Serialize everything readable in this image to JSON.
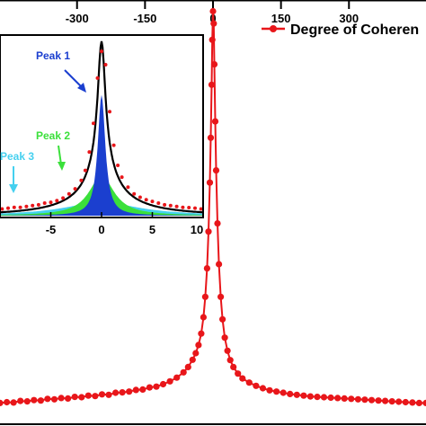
{
  "chart_data": [
    {
      "name": "main",
      "type": "scatter",
      "title": "",
      "xlabel": "",
      "ylabel": "",
      "xlim": [
        -470,
        470
      ],
      "ylim": [
        0,
        1.0
      ],
      "top_ticks": [
        -300,
        -150,
        0,
        150,
        300
      ],
      "top_tick_labels": [
        "-300",
        "-150",
        "0",
        "150",
        "300"
      ],
      "legend": {
        "label": "Degree of Coheren",
        "placement": "top-right"
      },
      "series": [
        {
          "name": "Degree of Coheren",
          "color": "#e8161a",
          "marker": "circle",
          "line": true,
          "points": [
            [
              -470,
              0.03
            ],
            [
              -455,
              0.032
            ],
            [
              -440,
              0.031
            ],
            [
              -425,
              0.035
            ],
            [
              -410,
              0.034
            ],
            [
              -395,
              0.037
            ],
            [
              -380,
              0.036
            ],
            [
              -365,
              0.04
            ],
            [
              -350,
              0.039
            ],
            [
              -335,
              0.042
            ],
            [
              -320,
              0.041
            ],
            [
              -305,
              0.045
            ],
            [
              -290,
              0.044
            ],
            [
              -275,
              0.048
            ],
            [
              -260,
              0.047
            ],
            [
              -245,
              0.051
            ],
            [
              -230,
              0.05
            ],
            [
              -215,
              0.055
            ],
            [
              -200,
              0.056
            ],
            [
              -185,
              0.058
            ],
            [
              -170,
              0.062
            ],
            [
              -155,
              0.063
            ],
            [
              -140,
              0.068
            ],
            [
              -125,
              0.07
            ],
            [
              -110,
              0.076
            ],
            [
              -95,
              0.083
            ],
            [
              -80,
              0.092
            ],
            [
              -65,
              0.105
            ],
            [
              -55,
              0.118
            ],
            [
              -45,
              0.136
            ],
            [
              -38,
              0.152
            ],
            [
              -32,
              0.172
            ],
            [
              -26,
              0.2
            ],
            [
              -21,
              0.24
            ],
            [
              -17,
              0.29
            ],
            [
              -13,
              0.36
            ],
            [
              -10,
              0.45
            ],
            [
              -7,
              0.57
            ],
            [
              -5,
              0.68
            ],
            [
              -3,
              0.81
            ],
            [
              -1.5,
              0.92
            ],
            [
              0,
              0.99
            ],
            [
              1.5,
              0.96
            ],
            [
              3,
              0.86
            ],
            [
              5,
              0.72
            ],
            [
              7,
              0.6
            ],
            [
              10,
              0.47
            ],
            [
              13,
              0.37
            ],
            [
              17,
              0.29
            ],
            [
              21,
              0.235
            ],
            [
              26,
              0.19
            ],
            [
              32,
              0.158
            ],
            [
              38,
              0.135
            ],
            [
              45,
              0.118
            ],
            [
              55,
              0.102
            ],
            [
              65,
              0.09
            ],
            [
              80,
              0.08
            ],
            [
              95,
              0.072
            ],
            [
              110,
              0.066
            ],
            [
              125,
              0.061
            ],
            [
              140,
              0.058
            ],
            [
              155,
              0.055
            ],
            [
              170,
              0.052
            ],
            [
              185,
              0.05
            ],
            [
              200,
              0.048
            ],
            [
              215,
              0.046
            ],
            [
              230,
              0.045
            ],
            [
              245,
              0.044
            ],
            [
              260,
              0.043
            ],
            [
              275,
              0.042
            ],
            [
              290,
              0.041
            ],
            [
              305,
              0.04
            ],
            [
              320,
              0.039
            ],
            [
              335,
              0.038
            ],
            [
              350,
              0.037
            ],
            [
              365,
              0.036
            ],
            [
              380,
              0.035
            ],
            [
              395,
              0.034
            ],
            [
              410,
              0.033
            ],
            [
              425,
              0.032
            ],
            [
              440,
              0.031
            ],
            [
              455,
              0.03
            ],
            [
              470,
              0.03
            ]
          ]
        }
      ]
    },
    {
      "name": "inset",
      "type": "area",
      "title": "",
      "xlabel": "",
      "ylabel": "",
      "xlim": [
        -10,
        10
      ],
      "ylim": [
        0,
        1.05
      ],
      "x_ticks": [
        -5,
        0,
        5,
        10
      ],
      "x_tick_labels": [
        "-5",
        "0",
        "5",
        "10"
      ],
      "colors": {
        "peak1": "#1b3fcf",
        "peak2": "#3be03b",
        "peak3": "#45d0ef",
        "fit": "#000000",
        "data": "#e8161a"
      },
      "annotations": [
        {
          "label": "Peak 1",
          "color": "#1b3fcf"
        },
        {
          "label": "Peak 2",
          "color": "#3be03b"
        },
        {
          "label": "Peak 3",
          "color": "#45d0ef"
        }
      ],
      "components": [
        {
          "name": "Peak 1",
          "center": 0,
          "width": 0.9,
          "height": 0.72
        },
        {
          "name": "Peak 2",
          "center": 0,
          "width": 3.0,
          "height": 0.24
        },
        {
          "name": "Peak 3",
          "center": 0,
          "width": 9.0,
          "height": 0.08
        }
      ],
      "series": [
        {
          "name": "data",
          "color": "#e8161a",
          "points": [
            [
              -9.8,
              0.04
            ],
            [
              -9.2,
              0.045
            ],
            [
              -8.6,
              0.05
            ],
            [
              -8.0,
              0.05
            ],
            [
              -7.4,
              0.055
            ],
            [
              -6.8,
              0.06
            ],
            [
              -6.2,
              0.065
            ],
            [
              -5.6,
              0.075
            ],
            [
              -5.0,
              0.08
            ],
            [
              -4.4,
              0.09
            ],
            [
              -3.8,
              0.105
            ],
            [
              -3.2,
              0.13
            ],
            [
              -2.6,
              0.16
            ],
            [
              -2.0,
              0.21
            ],
            [
              -1.6,
              0.27
            ],
            [
              -1.2,
              0.38
            ],
            [
              -0.8,
              0.55
            ],
            [
              -0.4,
              0.82
            ],
            [
              0,
              0.98
            ],
            [
              0.4,
              0.9
            ],
            [
              0.8,
              0.62
            ],
            [
              1.2,
              0.42
            ],
            [
              1.6,
              0.3
            ],
            [
              2.0,
              0.23
            ],
            [
              2.6,
              0.17
            ],
            [
              3.2,
              0.13
            ],
            [
              3.8,
              0.11
            ],
            [
              4.4,
              0.095
            ],
            [
              5.0,
              0.085
            ],
            [
              5.6,
              0.075
            ],
            [
              6.2,
              0.065
            ],
            [
              6.8,
              0.06
            ],
            [
              7.4,
              0.055
            ],
            [
              8.0,
              0.05
            ],
            [
              8.6,
              0.048
            ],
            [
              9.2,
              0.045
            ],
            [
              9.8,
              0.04
            ]
          ]
        }
      ]
    }
  ]
}
